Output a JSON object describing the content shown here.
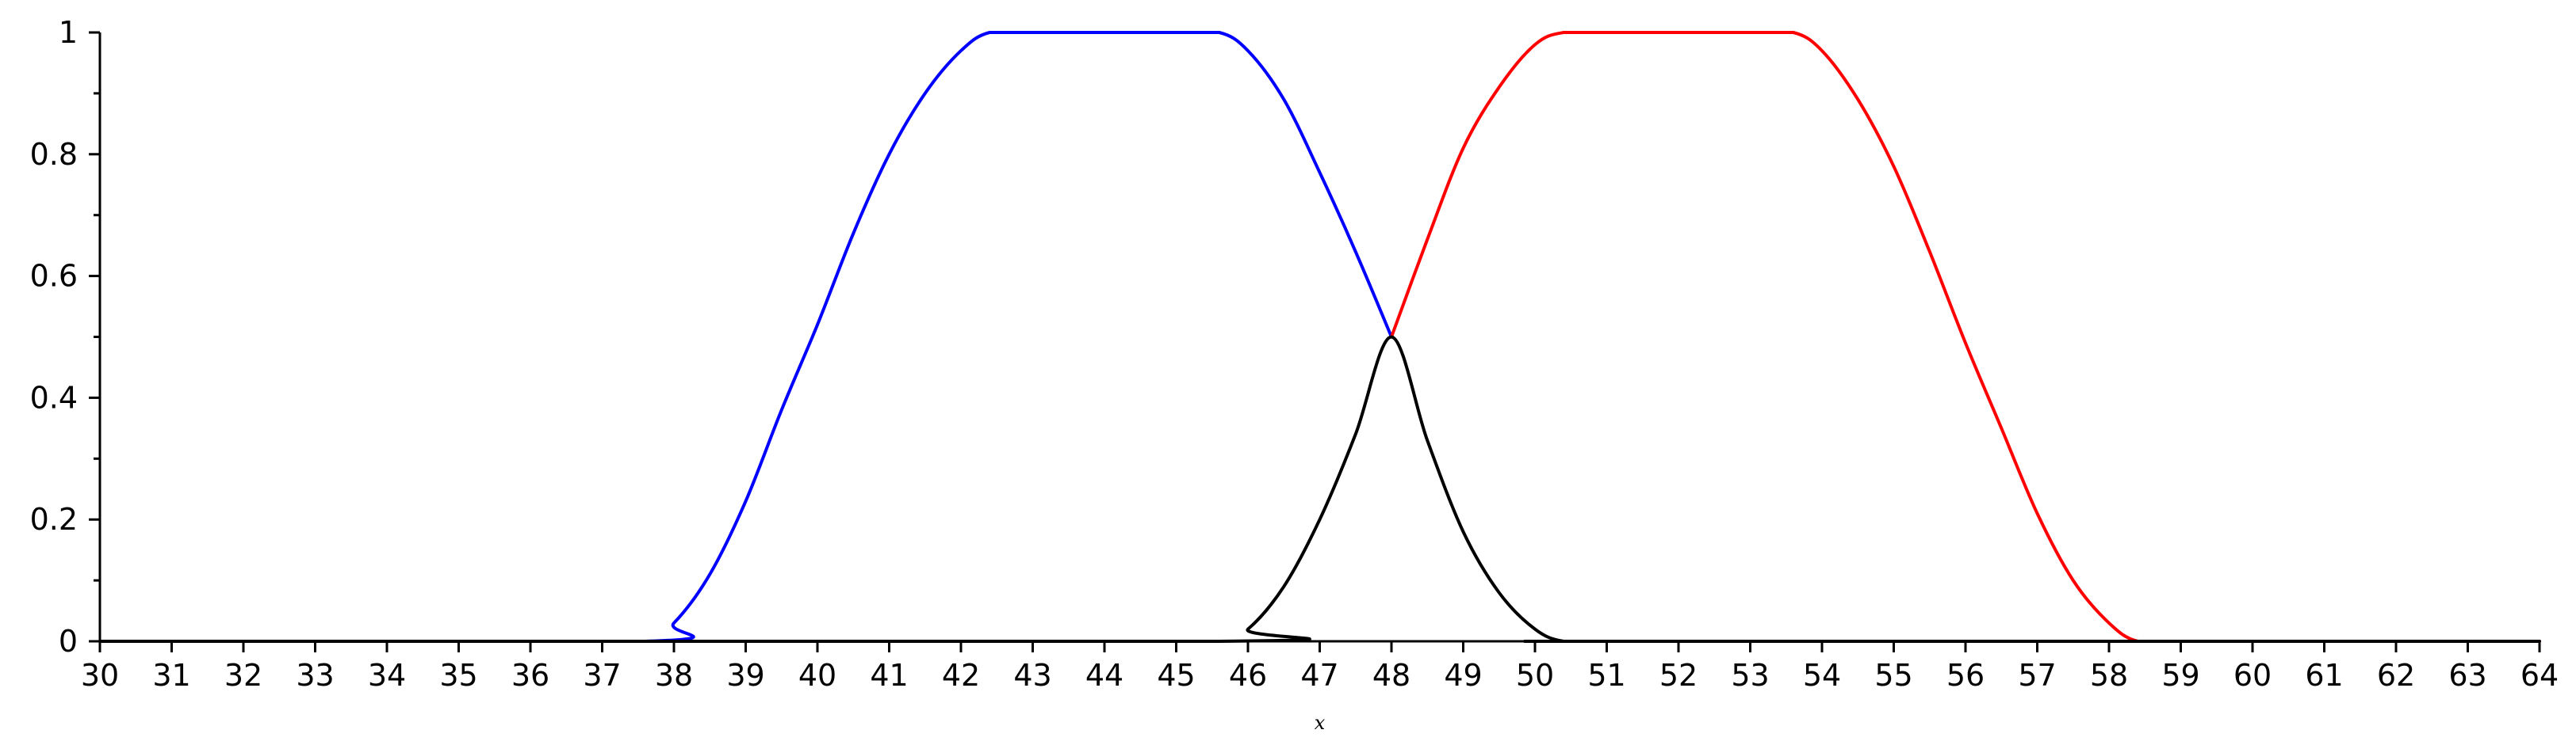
{
  "chart_data": {
    "type": "line",
    "title": "",
    "xlabel": "x",
    "ylabel": "",
    "xlim": [
      30,
      64
    ],
    "ylim": [
      0,
      1
    ],
    "grid": false,
    "legend": "none",
    "x_ticks": [
      30,
      31,
      32,
      33,
      34,
      35,
      36,
      37,
      38,
      39,
      40,
      41,
      42,
      43,
      44,
      45,
      46,
      47,
      48,
      49,
      50,
      51,
      52,
      53,
      54,
      55,
      56,
      57,
      58,
      59,
      60,
      61,
      62,
      63,
      64
    ],
    "x_tick_labels": [
      "30",
      "31",
      "32",
      "33",
      "34",
      "35",
      "36",
      "37",
      "38",
      "39",
      "40",
      "41",
      "42",
      "43",
      "44",
      "45",
      "46",
      "47",
      "48",
      "49",
      "50",
      "51",
      "52",
      "53",
      "54",
      "55",
      "56",
      "57",
      "58",
      "59",
      "60",
      "61",
      "62",
      "63",
      "64"
    ],
    "y_ticks": [
      0,
      0.2,
      0.4,
      0.6,
      0.8,
      1
    ],
    "y_tick_labels": [
      "0",
      "0.2",
      "0.4",
      "0.6",
      "0.8",
      "1"
    ],
    "y_minor_ticks": [
      0.1,
      0.3,
      0.5,
      0.7,
      0.9
    ],
    "series": [
      {
        "color": "#0000ff",
        "x": [
          30,
          37.6,
          38.0,
          38.5,
          39.0,
          39.5,
          40.0,
          40.5,
          41.0,
          41.5,
          42.0,
          42.4,
          43.0,
          44.0,
          45.0,
          45.6,
          46.0,
          46.5,
          47.0,
          47.5,
          48.0
        ],
        "y": [
          0,
          0,
          0.03,
          0.11,
          0.23,
          0.38,
          0.52,
          0.67,
          0.8,
          0.9,
          0.97,
          1.0,
          1.0,
          1.0,
          1.0,
          1.0,
          0.97,
          0.89,
          0.77,
          0.64,
          0.5
        ]
      },
      {
        "color": "#ff0000",
        "x": [
          48.0,
          48.5,
          49.0,
          49.5,
          50.0,
          50.4,
          51.0,
          52.0,
          53.0,
          53.6,
          54.0,
          54.5,
          55.0,
          55.5,
          56.0,
          56.5,
          57.0,
          57.5,
          58.0,
          58.4,
          59.0,
          64
        ],
        "y": [
          0.5,
          0.66,
          0.81,
          0.91,
          0.98,
          1.0,
          1.0,
          1.0,
          1.0,
          1.0,
          0.97,
          0.89,
          0.78,
          0.64,
          0.49,
          0.35,
          0.21,
          0.1,
          0.03,
          0,
          0,
          0
        ]
      },
      {
        "color": "#000000",
        "x": [
          30,
          45.6,
          46.0,
          46.5,
          47.0,
          47.5,
          48.0,
          48.5,
          49.0,
          49.5,
          50.0,
          50.4,
          51.0,
          64
        ],
        "y": [
          0,
          0,
          0.02,
          0.09,
          0.2,
          0.34,
          0.5,
          0.33,
          0.18,
          0.08,
          0.02,
          0,
          0,
          0
        ]
      }
    ]
  }
}
